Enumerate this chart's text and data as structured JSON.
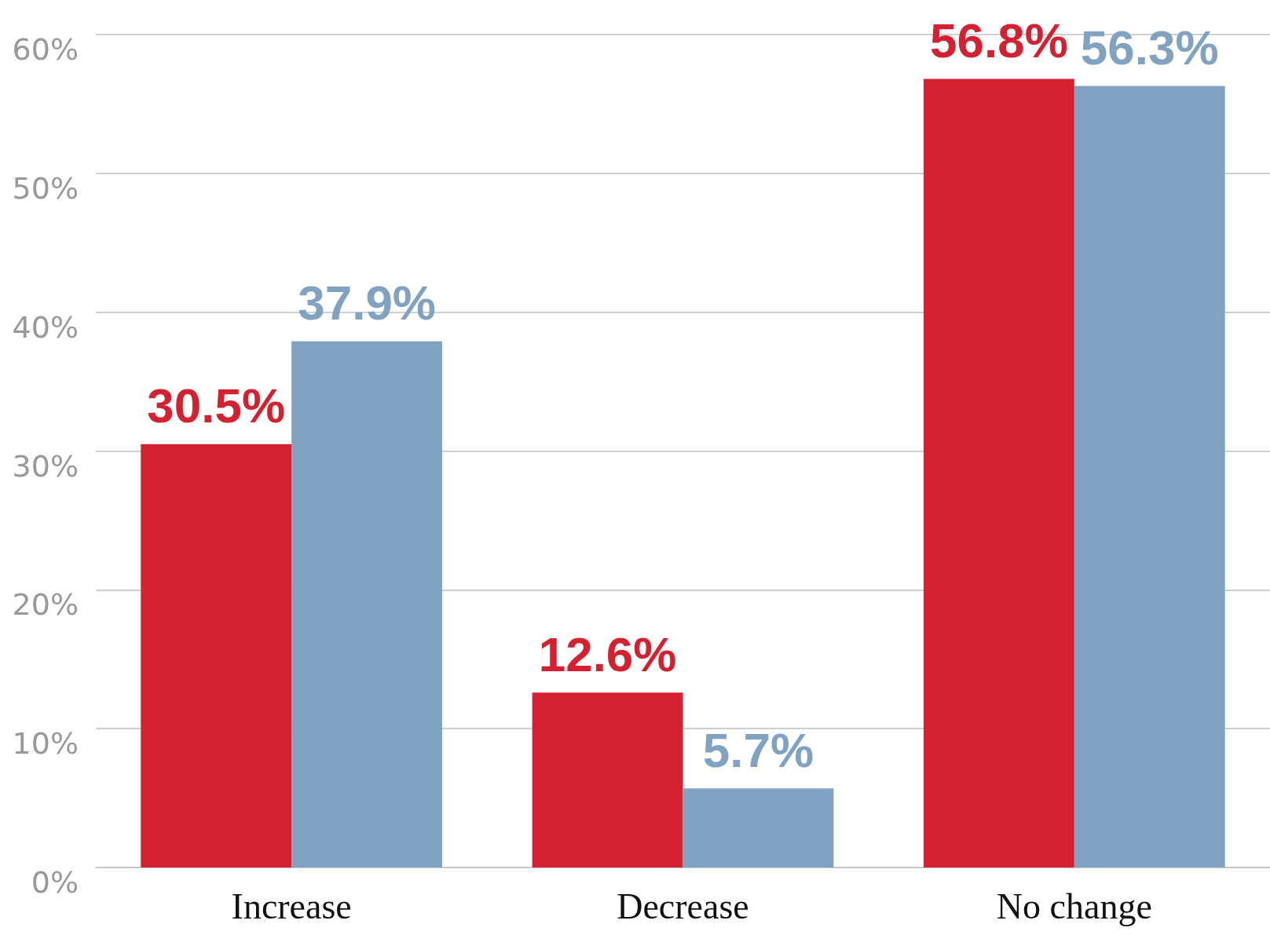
{
  "chart_data": {
    "type": "bar",
    "categories": [
      "Increase",
      "Decrease",
      "No change"
    ],
    "series": [
      {
        "color": "#d42131",
        "values": [
          30.5,
          12.6,
          56.8
        ],
        "value_labels": [
          "30.5%",
          "12.6%",
          "56.8%"
        ]
      },
      {
        "color": "#81a3c1",
        "values": [
          37.9,
          5.7,
          56.3
        ],
        "value_labels": [
          "37.9%",
          "5.7%",
          "56.3%"
        ]
      }
    ],
    "ylim": [
      0,
      60
    ],
    "yticks": [
      {
        "value": 0,
        "label": "0%"
      },
      {
        "value": 10,
        "label": "10%"
      },
      {
        "value": 20,
        "label": "20%"
      },
      {
        "value": 30,
        "label": "30%"
      },
      {
        "value": 40,
        "label": "40%"
      },
      {
        "value": 50,
        "label": "50%"
      },
      {
        "value": 60,
        "label": "60%"
      }
    ],
    "grid": "y"
  }
}
